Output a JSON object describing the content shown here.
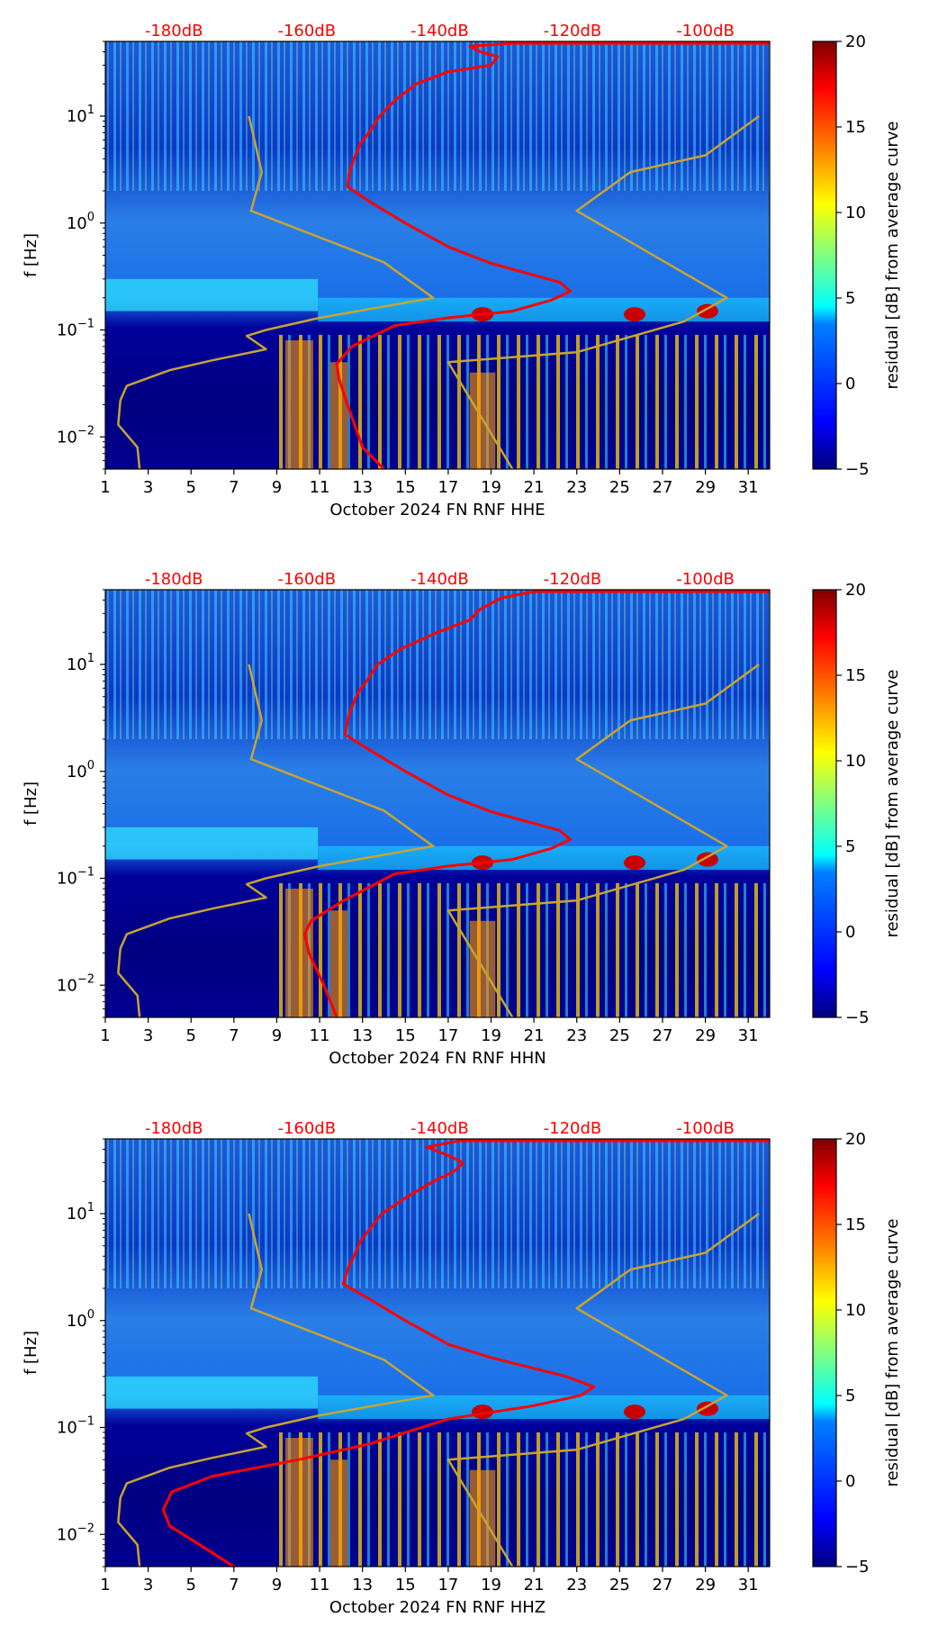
{
  "colors": {
    "colormap": [
      "#00007f",
      "#0000ff",
      "#0080ff",
      "#00ffff",
      "#80ff80",
      "#ffff00",
      "#ff8000",
      "#ff0000",
      "#7f0000"
    ],
    "average_curve": "#ff0000",
    "model_curve": "#c8a431",
    "db_label": "#ff0000"
  },
  "chart_data": [
    {
      "type": "heatmap",
      "title": "",
      "xlabel": "October 2024 FN RNF  HHE",
      "ylabel": "f [Hz]",
      "x_ticks": [
        "1",
        "3",
        "5",
        "7",
        "9",
        "11",
        "13",
        "15",
        "17",
        "19",
        "21",
        "23",
        "25",
        "27",
        "29",
        "31"
      ],
      "xlim": [
        1,
        32
      ],
      "y_scale": "log",
      "ylim": [
        0.005,
        50
      ],
      "y_ticks": [
        {
          "mantissa": "10",
          "exp": "−2"
        },
        {
          "mantissa": "10",
          "exp": "−1"
        },
        {
          "mantissa": "10",
          "exp": "0"
        },
        {
          "mantissa": "10",
          "exp": "1"
        }
      ],
      "top_ticks": [
        "-180dB",
        "-160dB",
        "-140dB",
        "-120dB",
        "-100dB"
      ],
      "colorbar": {
        "label": "residual [dB] from average curve",
        "range": [
          -5,
          20
        ],
        "ticks": [
          "−5",
          "0",
          "5",
          "10",
          "15",
          "20"
        ]
      },
      "series": [
        {
          "name": "average",
          "color": "#ff0000",
          "points": [
            [
              14,
              0.005
            ],
            [
              13,
              0.008
            ],
            [
              12.3,
              0.02
            ],
            [
              11.9,
              0.035
            ],
            [
              11.8,
              0.048
            ],
            [
              12.5,
              0.07
            ],
            [
              14.5,
              0.11
            ],
            [
              17,
              0.13
            ],
            [
              20,
              0.15
            ],
            [
              21.8,
              0.19
            ],
            [
              22.7,
              0.23
            ],
            [
              22.2,
              0.28
            ],
            [
              19,
              0.42
            ],
            [
              17,
              0.6
            ],
            [
              15,
              1.0
            ],
            [
              13.3,
              1.6
            ],
            [
              12.3,
              2.2
            ],
            [
              12.4,
              3
            ],
            [
              12.6,
              4
            ],
            [
              12.9,
              5.5
            ],
            [
              13.3,
              7
            ],
            [
              13.8,
              10
            ],
            [
              14.5,
              14
            ],
            [
              15.5,
              20
            ],
            [
              17,
              26
            ],
            [
              19,
              30
            ],
            [
              19.3,
              36
            ],
            [
              18.5,
              40
            ],
            [
              18,
              45
            ],
            [
              20,
              48
            ],
            [
              32,
              48
            ]
          ]
        },
        {
          "name": "model_low",
          "color": "#c8a431",
          "points": [
            [
              2.6,
              0.005
            ],
            [
              2.5,
              0.008
            ],
            [
              1.6,
              0.013
            ],
            [
              1.7,
              0.022
            ],
            [
              2,
              0.03
            ],
            [
              4,
              0.042
            ],
            [
              6,
              0.052
            ],
            [
              8.5,
              0.066
            ],
            [
              7.6,
              0.088
            ],
            [
              8.5,
              0.1
            ],
            [
              11,
              0.13
            ],
            [
              16.3,
              0.2
            ],
            [
              14,
              0.43
            ],
            [
              7.8,
              1.3
            ],
            [
              8.3,
              3
            ],
            [
              7.7,
              10
            ]
          ]
        },
        {
          "name": "model_high",
          "color": "#c8a431",
          "points": [
            [
              20,
              0.005
            ],
            [
              17,
              0.05
            ],
            [
              23,
              0.062
            ],
            [
              28,
              0.12
            ],
            [
              30,
              0.2
            ],
            [
              23,
              1.3
            ],
            [
              25.5,
              3
            ],
            [
              29,
              4.3
            ],
            [
              31.5,
              10
            ]
          ]
        }
      ]
    },
    {
      "type": "heatmap",
      "title": "",
      "xlabel": "October 2024 FN RNF  HHN",
      "ylabel": "f [Hz]",
      "x_ticks": [
        "1",
        "3",
        "5",
        "7",
        "9",
        "11",
        "13",
        "15",
        "17",
        "19",
        "21",
        "23",
        "25",
        "27",
        "29",
        "31"
      ],
      "xlim": [
        1,
        32
      ],
      "y_scale": "log",
      "ylim": [
        0.005,
        50
      ],
      "y_ticks": [
        {
          "mantissa": "10",
          "exp": "−2"
        },
        {
          "mantissa": "10",
          "exp": "−1"
        },
        {
          "mantissa": "10",
          "exp": "0"
        },
        {
          "mantissa": "10",
          "exp": "1"
        }
      ],
      "top_ticks": [
        "-180dB",
        "-160dB",
        "-140dB",
        "-120dB",
        "-100dB"
      ],
      "colorbar": {
        "label": "residual [dB] from average curve",
        "range": [
          -5,
          20
        ],
        "ticks": [
          "−5",
          "0",
          "5",
          "10",
          "15",
          "20"
        ]
      },
      "series": [
        {
          "name": "average",
          "color": "#ff0000",
          "points": [
            [
              11.8,
              0.005
            ],
            [
              11.2,
              0.01
            ],
            [
              10.5,
              0.02
            ],
            [
              10.3,
              0.03
            ],
            [
              10.6,
              0.04
            ],
            [
              12,
              0.06
            ],
            [
              14.5,
              0.11
            ],
            [
              17,
              0.13
            ],
            [
              20,
              0.15
            ],
            [
              21.8,
              0.19
            ],
            [
              22.7,
              0.23
            ],
            [
              22.2,
              0.28
            ],
            [
              19,
              0.42
            ],
            [
              17,
              0.6
            ],
            [
              15,
              1.0
            ],
            [
              13.3,
              1.6
            ],
            [
              12.2,
              2.2
            ],
            [
              12.3,
              3
            ],
            [
              12.5,
              4
            ],
            [
              12.8,
              5.5
            ],
            [
              13.2,
              7
            ],
            [
              13.7,
              10
            ],
            [
              14.8,
              14
            ],
            [
              16.5,
              20
            ],
            [
              18,
              26
            ],
            [
              18.5,
              33
            ],
            [
              19.5,
              42
            ],
            [
              21,
              48
            ],
            [
              32,
              48
            ]
          ]
        },
        {
          "name": "model_low",
          "color": "#c8a431",
          "points": [
            [
              2.6,
              0.005
            ],
            [
              2.5,
              0.008
            ],
            [
              1.6,
              0.013
            ],
            [
              1.7,
              0.022
            ],
            [
              2,
              0.03
            ],
            [
              4,
              0.042
            ],
            [
              6,
              0.052
            ],
            [
              8.5,
              0.066
            ],
            [
              7.6,
              0.088
            ],
            [
              8.5,
              0.1
            ],
            [
              11,
              0.13
            ],
            [
              16.3,
              0.2
            ],
            [
              14,
              0.43
            ],
            [
              7.8,
              1.3
            ],
            [
              8.3,
              3
            ],
            [
              7.7,
              10
            ]
          ]
        },
        {
          "name": "model_high",
          "color": "#c8a431",
          "points": [
            [
              20,
              0.005
            ],
            [
              17,
              0.05
            ],
            [
              23,
              0.062
            ],
            [
              28,
              0.12
            ],
            [
              30,
              0.2
            ],
            [
              23,
              1.3
            ],
            [
              25.5,
              3
            ],
            [
              29,
              4.3
            ],
            [
              31.5,
              10
            ]
          ]
        }
      ]
    },
    {
      "type": "heatmap",
      "title": "",
      "xlabel": "October 2024 FN RNF  HHZ",
      "ylabel": "f [Hz]",
      "x_ticks": [
        "1",
        "3",
        "5",
        "7",
        "9",
        "11",
        "13",
        "15",
        "17",
        "19",
        "21",
        "23",
        "25",
        "27",
        "29",
        "31"
      ],
      "xlim": [
        1,
        32
      ],
      "y_scale": "log",
      "ylim": [
        0.005,
        50
      ],
      "y_ticks": [
        {
          "mantissa": "10",
          "exp": "−2"
        },
        {
          "mantissa": "10",
          "exp": "−1"
        },
        {
          "mantissa": "10",
          "exp": "0"
        },
        {
          "mantissa": "10",
          "exp": "1"
        }
      ],
      "top_ticks": [
        "-180dB",
        "-160dB",
        "-140dB",
        "-120dB",
        "-100dB"
      ],
      "colorbar": {
        "label": "residual [dB] from average curve",
        "range": [
          -5,
          20
        ],
        "ticks": [
          "−5",
          "0",
          "5",
          "10",
          "15",
          "20"
        ]
      },
      "series": [
        {
          "name": "average",
          "color": "#ff0000",
          "points": [
            [
              7,
              0.005
            ],
            [
              5,
              0.009
            ],
            [
              4,
              0.012
            ],
            [
              3.7,
              0.017
            ],
            [
              4.1,
              0.025
            ],
            [
              6,
              0.035
            ],
            [
              10,
              0.05
            ],
            [
              13.3,
              0.07
            ],
            [
              17,
              0.12
            ],
            [
              21,
              0.16
            ],
            [
              23.2,
              0.2
            ],
            [
              23.8,
              0.24
            ],
            [
              22.5,
              0.3
            ],
            [
              19,
              0.45
            ],
            [
              17,
              0.6
            ],
            [
              15,
              1.0
            ],
            [
              13.3,
              1.6
            ],
            [
              12.1,
              2.2
            ],
            [
              12.3,
              3
            ],
            [
              12.6,
              4
            ],
            [
              12.9,
              5.5
            ],
            [
              13.3,
              7
            ],
            [
              13.9,
              10
            ],
            [
              15,
              14
            ],
            [
              16.3,
              20
            ],
            [
              17.3,
              25
            ],
            [
              17.7,
              30
            ],
            [
              17,
              35
            ],
            [
              16,
              42
            ],
            [
              17.5,
              48
            ],
            [
              32,
              48
            ]
          ]
        },
        {
          "name": "model_low",
          "color": "#c8a431",
          "points": [
            [
              2.6,
              0.005
            ],
            [
              2.5,
              0.008
            ],
            [
              1.6,
              0.013
            ],
            [
              1.7,
              0.022
            ],
            [
              2,
              0.03
            ],
            [
              4,
              0.042
            ],
            [
              6,
              0.052
            ],
            [
              8.5,
              0.066
            ],
            [
              7.6,
              0.088
            ],
            [
              8.5,
              0.1
            ],
            [
              11,
              0.13
            ],
            [
              16.3,
              0.2
            ],
            [
              14,
              0.43
            ],
            [
              7.8,
              1.3
            ],
            [
              8.3,
              3
            ],
            [
              7.7,
              10
            ]
          ]
        },
        {
          "name": "model_high",
          "color": "#c8a431",
          "points": [
            [
              20,
              0.005
            ],
            [
              17,
              0.05
            ],
            [
              23,
              0.062
            ],
            [
              28,
              0.12
            ],
            [
              30,
              0.2
            ],
            [
              23,
              1.3
            ],
            [
              25.5,
              3
            ],
            [
              29,
              4.3
            ],
            [
              31.5,
              10
            ]
          ]
        }
      ]
    }
  ]
}
